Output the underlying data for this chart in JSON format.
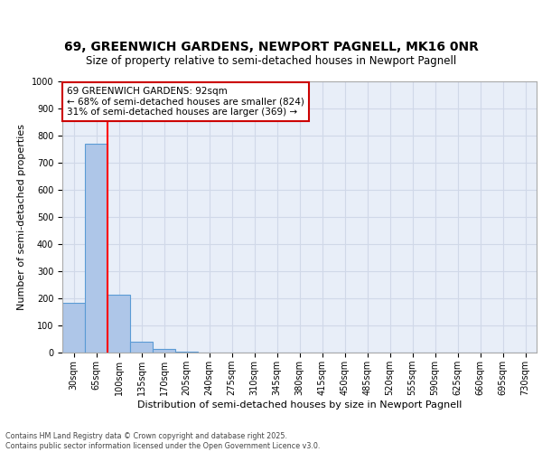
{
  "title": "69, GREENWICH GARDENS, NEWPORT PAGNELL, MK16 0NR",
  "subtitle": "Size of property relative to semi-detached houses in Newport Pagnell",
  "xlabel": "Distribution of semi-detached houses by size in Newport Pagnell",
  "ylabel": "Number of semi-detached properties",
  "categories": [
    "30sqm",
    "65sqm",
    "100sqm",
    "135sqm",
    "170sqm",
    "205sqm",
    "240sqm",
    "275sqm",
    "310sqm",
    "345sqm",
    "380sqm",
    "415sqm",
    "450sqm",
    "485sqm",
    "520sqm",
    "555sqm",
    "590sqm",
    "625sqm",
    "660sqm",
    "695sqm",
    "730sqm"
  ],
  "values": [
    185,
    770,
    212,
    40,
    12,
    5,
    0,
    0,
    0,
    0,
    0,
    0,
    0,
    0,
    0,
    0,
    0,
    0,
    0,
    0,
    0
  ],
  "ylim": [
    0,
    1000
  ],
  "yticks": [
    0,
    100,
    200,
    300,
    400,
    500,
    600,
    700,
    800,
    900,
    1000
  ],
  "bar_color": "#aec6e8",
  "bar_edge_color": "#5b9bd5",
  "grid_color": "#d0d8e8",
  "background_color": "#e8eef8",
  "property_line_x": 1.5,
  "property_sqm": 92,
  "pct_smaller": 68,
  "count_smaller": 824,
  "pct_larger": 31,
  "count_larger": 369,
  "annotation_box_color": "#cc0000",
  "title_fontsize": 10,
  "subtitle_fontsize": 8.5,
  "tick_fontsize": 7,
  "ylabel_fontsize": 8,
  "xlabel_fontsize": 8,
  "footer_text": "Contains HM Land Registry data © Crown copyright and database right 2025.\nContains public sector information licensed under the Open Government Licence v3.0."
}
